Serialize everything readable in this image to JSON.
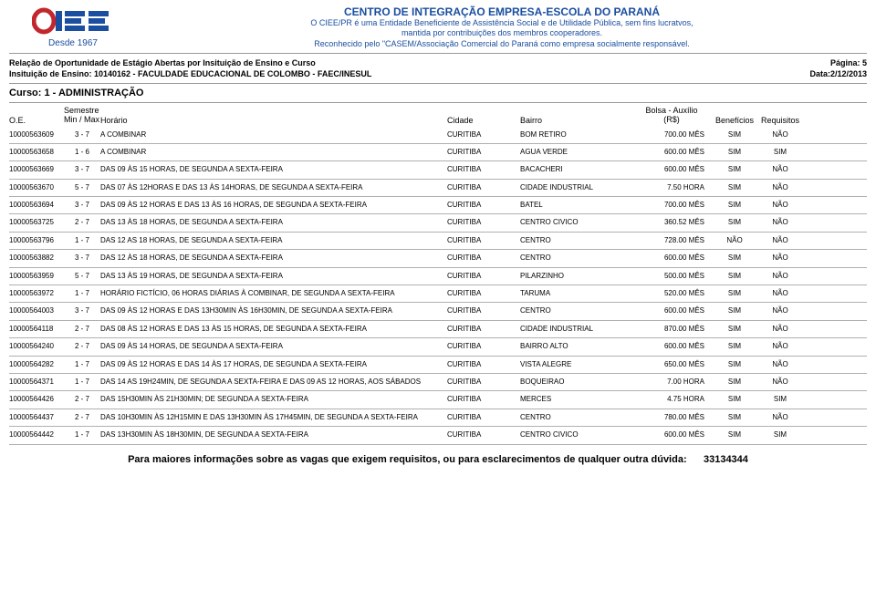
{
  "header": {
    "since": "Desde 1967",
    "org_title": "CENTRO DE INTEGRAÇÃO EMPRESA-ESCOLA DO PARANÁ",
    "org_line1": "O CIEE/PR é uma Entidade Beneficiente de Assistência Social e de Utilidade Pública, sem fins lucratvos,",
    "org_line2": "mantida por contribuições dos membros cooperadores.",
    "org_line3": "Reconhecido pelo \"CASEM/Associação Comercial do Paraná como empresa socialmente responsável."
  },
  "meta": {
    "relacao": "Relação de Oportunidade de Estágio Abertas por Insituição de Ensino e Curso",
    "pagina": "Página: 5",
    "instituicao": "Insituição de Ensino: 10140162 - FACULDADE EDUCACIONAL DE COLOMBO - FAEC/INESUL",
    "data": "Data:2/12/2013",
    "curso": "Curso: 1 - ADMINISTRAÇÃO"
  },
  "columns": {
    "oe": "O.E.",
    "sem1": "Semestre",
    "sem2": "Min / Max",
    "hor": "Horário",
    "cid": "Cidade",
    "bai": "Bairro",
    "bol1": "Bolsa - Auxílio",
    "bol2": "(R$)",
    "ben": "Benefícios",
    "req": "Requisitos"
  },
  "rows": [
    {
      "oe": "10000563609",
      "sem": "3 - 7",
      "hor": "A COMBINAR",
      "cid": "CURITIBA",
      "bai": "BOM RETIRO",
      "bol": "700.00 MÊS",
      "ben": "SIM",
      "req": "NÃO"
    },
    {
      "oe": "10000563658",
      "sem": "1 - 6",
      "hor": "A COMBINAR",
      "cid": "CURITIBA",
      "bai": "AGUA VERDE",
      "bol": "600.00 MÊS",
      "ben": "SIM",
      "req": "SIM"
    },
    {
      "oe": "10000563669",
      "sem": "3 - 7",
      "hor": "DAS 09 ÀS 15 HORAS, DE SEGUNDA A SEXTA-FEIRA",
      "cid": "CURITIBA",
      "bai": "BACACHERI",
      "bol": "600.00 MÊS",
      "ben": "SIM",
      "req": "NÃO"
    },
    {
      "oe": "10000563670",
      "sem": "5 - 7",
      "hor": "DAS 07 ÀS 12HORAS E DAS 13 ÀS 14HORAS, DE SEGUNDA A SEXTA-FEIRA",
      "cid": "CURITIBA",
      "bai": "CIDADE INDUSTRIAL",
      "bol": "7.50 HORA",
      "ben": "SIM",
      "req": "NÃO"
    },
    {
      "oe": "10000563694",
      "sem": "3 - 7",
      "hor": "DAS 09 ÀS 12 HORAS E DAS 13 ÀS 16 HORAS, DE SEGUNDA A SEXTA-FEIRA",
      "cid": "CURITIBA",
      "bai": "BATEL",
      "bol": "700.00 MÊS",
      "ben": "SIM",
      "req": "NÃO"
    },
    {
      "oe": "10000563725",
      "sem": "2 - 7",
      "hor": "DAS 13 ÀS 18 HORAS, DE SEGUNDA A SEXTA-FEIRA",
      "cid": "CURITIBA",
      "bai": "CENTRO CIVICO",
      "bol": "360.52 MÊS",
      "ben": "SIM",
      "req": "NÃO"
    },
    {
      "oe": "10000563796",
      "sem": "1 - 7",
      "hor": "DAS 12 AS 18 HORAS, DE SEGUNDA A SEXTA-FEIRA",
      "cid": "CURITIBA",
      "bai": "CENTRO",
      "bol": "728.00 MÊS",
      "ben": "NÃO",
      "req": "NÃO"
    },
    {
      "oe": "10000563882",
      "sem": "3 - 7",
      "hor": "DAS 12 ÀS 18 HORAS, DE SEGUNDA A SEXTA-FEIRA",
      "cid": "CURITIBA",
      "bai": "CENTRO",
      "bol": "600.00 MÊS",
      "ben": "SIM",
      "req": "NÃO"
    },
    {
      "oe": "10000563959",
      "sem": "5 - 7",
      "hor": "DAS 13 ÀS 19 HORAS, DE SEGUNDA A SEXTA-FEIRA",
      "cid": "CURITIBA",
      "bai": "PILARZINHO",
      "bol": "500.00 MÊS",
      "ben": "SIM",
      "req": "NÃO"
    },
    {
      "oe": "10000563972",
      "sem": "1 - 7",
      "hor": "HORÁRIO FICTÍCIO, 06 HORAS DIÁRIAS À COMBINAR, DE SEGUNDA A SEXTA-FEIRA",
      "cid": "CURITIBA",
      "bai": "TARUMA",
      "bol": "520.00 MÊS",
      "ben": "SIM",
      "req": "NÃO"
    },
    {
      "oe": "10000564003",
      "sem": "3 - 7",
      "hor": "DAS 09 ÀS 12 HORAS E DAS 13H30MIN ÀS 16H30MIN, DE SEGUNDA A SEXTA-FEIRA",
      "cid": "CURITIBA",
      "bai": "CENTRO",
      "bol": "600.00 MÊS",
      "ben": "SIM",
      "req": "NÃO"
    },
    {
      "oe": "10000564118",
      "sem": "2 - 7",
      "hor": "DAS 08 ÀS 12 HORAS E DAS 13 ÀS 15 HORAS, DE SEGUNDA A SEXTA-FEIRA",
      "cid": "CURITIBA",
      "bai": "CIDADE INDUSTRIAL",
      "bol": "870.00 MÊS",
      "ben": "SIM",
      "req": "NÃO"
    },
    {
      "oe": "10000564240",
      "sem": "2 - 7",
      "hor": "DAS 09 ÀS 14 HORAS, DE SEGUNDA A SEXTA-FEIRA",
      "cid": "CURITIBA",
      "bai": "BAIRRO ALTO",
      "bol": "600.00 MÊS",
      "ben": "SIM",
      "req": "NÃO"
    },
    {
      "oe": "10000564282",
      "sem": "1 - 7",
      "hor": "DAS 09 ÀS 12 HORAS E DAS 14 ÀS 17 HORAS, DE SEGUNDA A SEXTA-FEIRA",
      "cid": "CURITIBA",
      "bai": "VISTA ALEGRE",
      "bol": "650.00 MÊS",
      "ben": "SIM",
      "req": "NÃO"
    },
    {
      "oe": "10000564371",
      "sem": "1 - 7",
      "hor": "DAS 14 AS 19H24MIN, DE SEGUNDA A SEXTA-FEIRA  E DAS  09 AS 12 HORAS, AOS SÁBADOS",
      "cid": "CURITIBA",
      "bai": "BOQUEIRAO",
      "bol": "7.00 HORA",
      "ben": "SIM",
      "req": "NÃO"
    },
    {
      "oe": "10000564426",
      "sem": "2 - 7",
      "hor": "DAS 15H30MIN ÀS 21H30MIN; DE SEGUNDA A SEXTA-FEIRA",
      "cid": "CURITIBA",
      "bai": "MERCES",
      "bol": "4.75 HORA",
      "ben": "SIM",
      "req": "SIM"
    },
    {
      "oe": "10000564437",
      "sem": "2 - 7",
      "hor": "DAS 10H30MIN ÀS 12H15MIN E DAS 13H30MIN ÀS 17H45MIN, DE SEGUNDA A SEXTA-FEIRA",
      "cid": "CURITIBA",
      "bai": "CENTRO",
      "bol": "780.00 MÊS",
      "ben": "SIM",
      "req": "NÃO"
    },
    {
      "oe": "10000564442",
      "sem": "1 - 7",
      "hor": "DAS 13H30MIN ÀS 18H30MIN, DE SEGUNDA A SEXTA-FEIRA",
      "cid": "CURITIBA",
      "bai": "CENTRO CIVICO",
      "bol": "600.00 MÊS",
      "ben": "SIM",
      "req": "SIM"
    }
  ],
  "footer": {
    "text": "Para maiores informações sobre as vagas que exigem requisitos, ou para esclarecimentos de qualquer outra dúvida:",
    "phone": "33134344"
  }
}
